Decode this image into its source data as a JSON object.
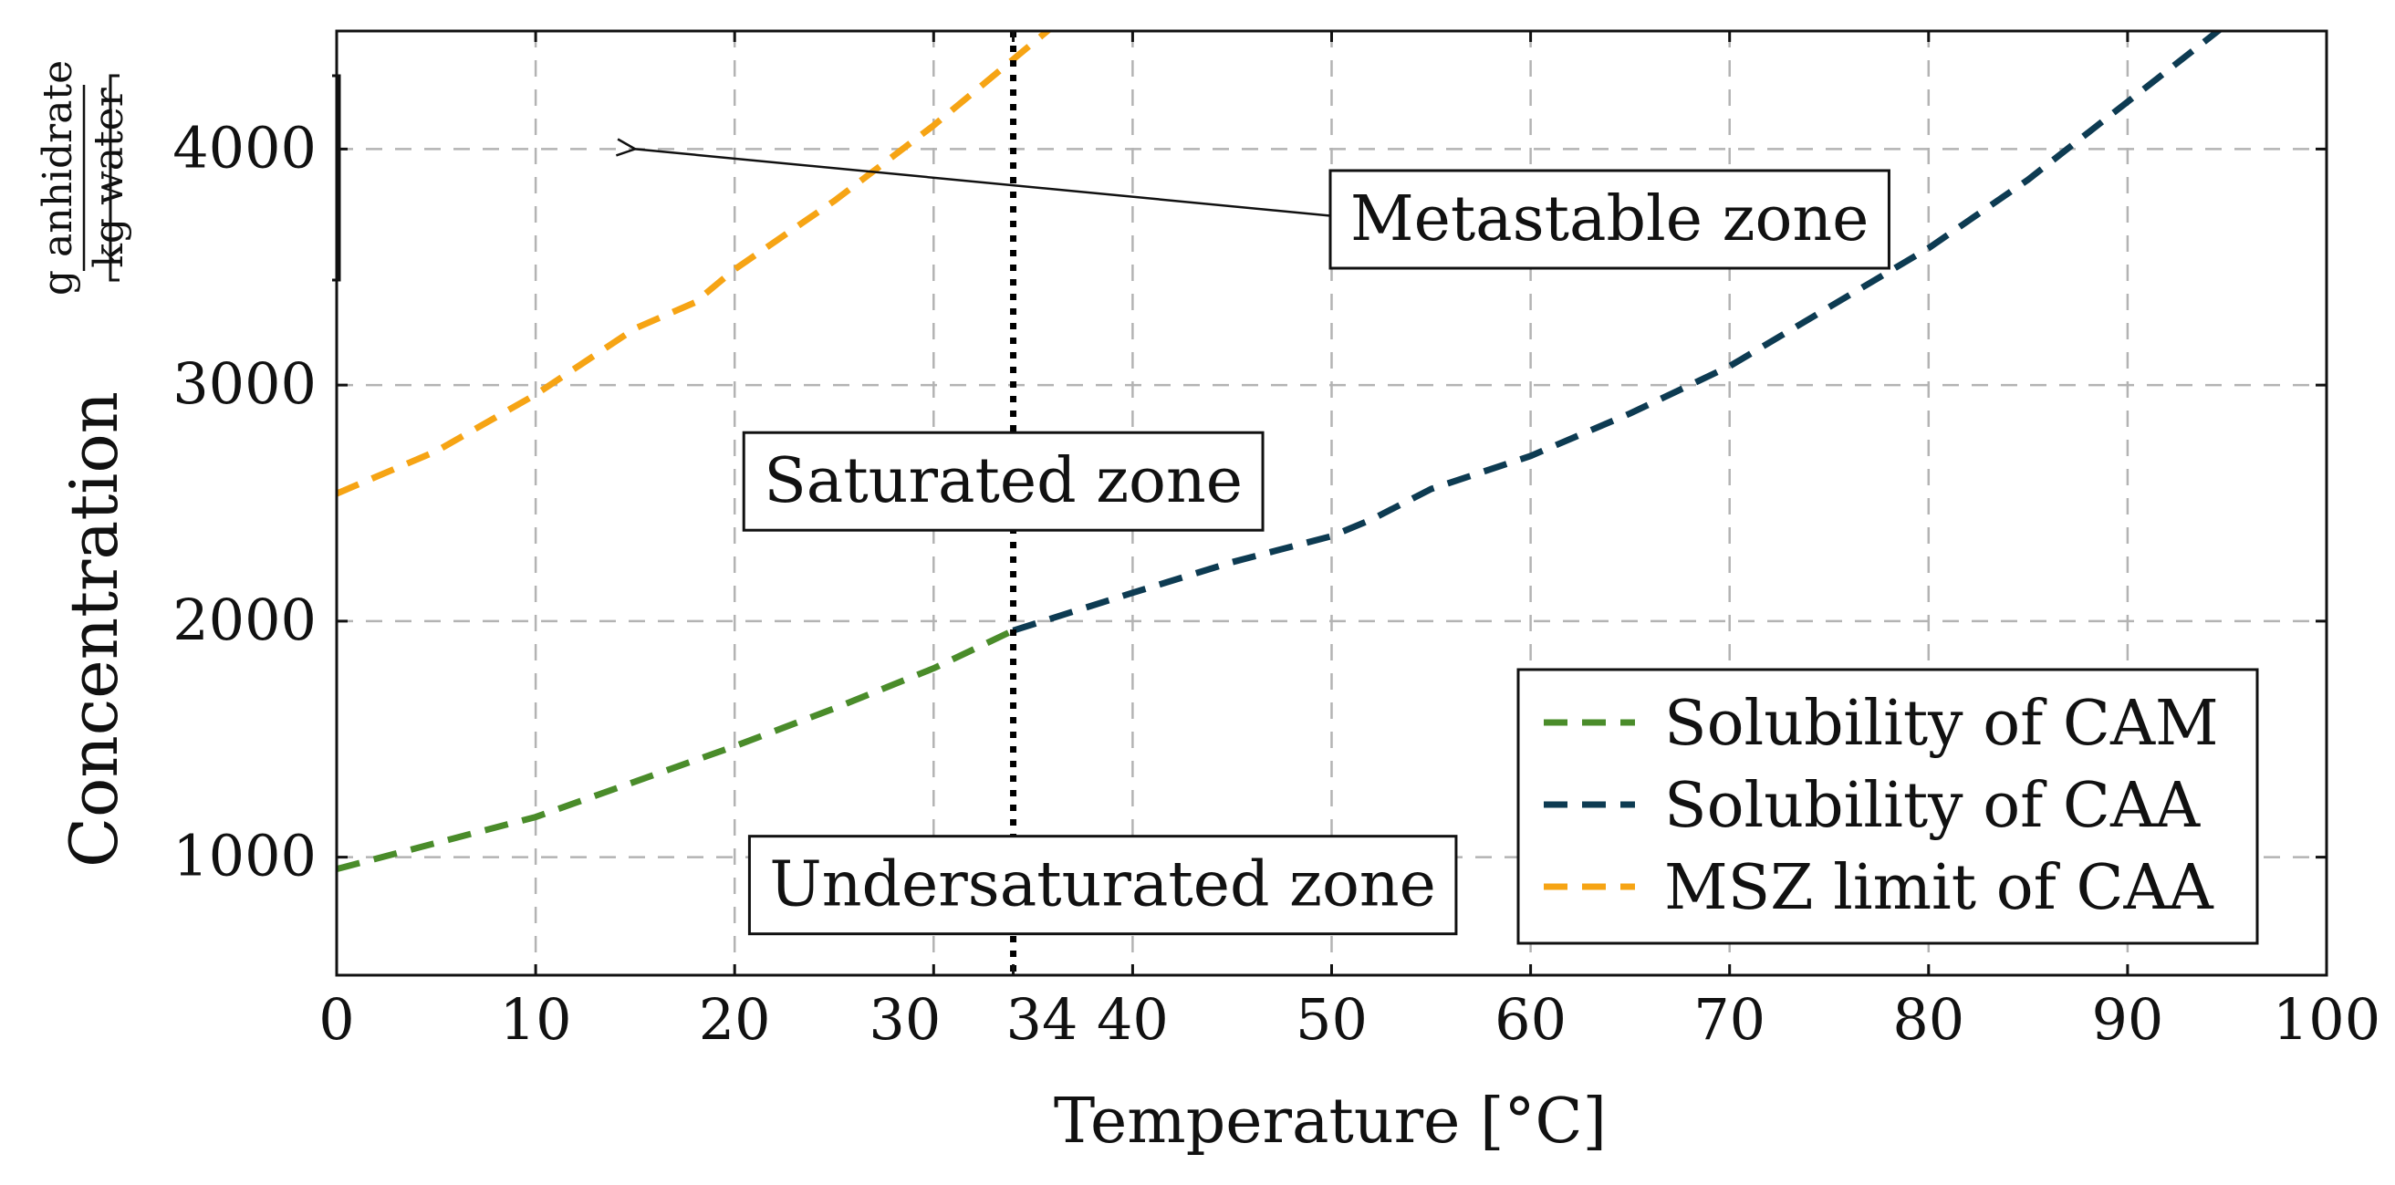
{
  "chart_data": {
    "type": "line",
    "title": "",
    "xlabel": "Temperature [°C]",
    "ylabel_main": "Concentration",
    "ylabel_unit_num": "g anhidrate",
    "ylabel_unit_den": "kg water",
    "xlim": [
      0,
      100
    ],
    "ylim": [
      500,
      4500
    ],
    "xticks": [
      0,
      10,
      20,
      30,
      34,
      40,
      50,
      60,
      70,
      80,
      90,
      100
    ],
    "yticks": [
      1000,
      2000,
      3000,
      4000
    ],
    "grid": true,
    "legend_position": "bottom-right",
    "series": [
      {
        "name": "Solubility of CAM",
        "color": "#4a8c2a",
        "style": "dashed",
        "x": [
          0,
          5,
          10,
          15,
          20,
          25,
          30,
          34
        ],
        "y": [
          950,
          1060,
          1170,
          1320,
          1470,
          1630,
          1800,
          1960
        ]
      },
      {
        "name": "Solubility of CAA",
        "color": "#0d3b52",
        "style": "dashed",
        "x": [
          34,
          40,
          45,
          50,
          52,
          55,
          60,
          65,
          70,
          75,
          80,
          85,
          90,
          95
        ],
        "y": [
          1960,
          2120,
          2250,
          2360,
          2430,
          2560,
          2700,
          2880,
          3080,
          3330,
          3580,
          3870,
          4200,
          4530
        ]
      },
      {
        "name": "MSZ limit of CAA",
        "color": "#f6a414",
        "style": "dashed",
        "x": [
          0,
          5,
          10,
          15,
          18,
          20,
          25,
          30,
          34,
          36
        ],
        "y": [
          2540,
          2720,
          2960,
          3240,
          3350,
          3490,
          3780,
          4100,
          4380,
          4520
        ]
      }
    ],
    "vertical_line": {
      "x": 34,
      "style": "dotted",
      "color": "#000000"
    },
    "annotations": [
      {
        "text": "Metastable zone",
        "x": 64.5,
        "y": 3700,
        "arrow_to": [
          15,
          4000
        ]
      },
      {
        "text": "Saturated zone",
        "x": 33.5,
        "y": 2590
      },
      {
        "text": "Undersaturated zone",
        "x": 38.5,
        "y": 880
      }
    ]
  }
}
